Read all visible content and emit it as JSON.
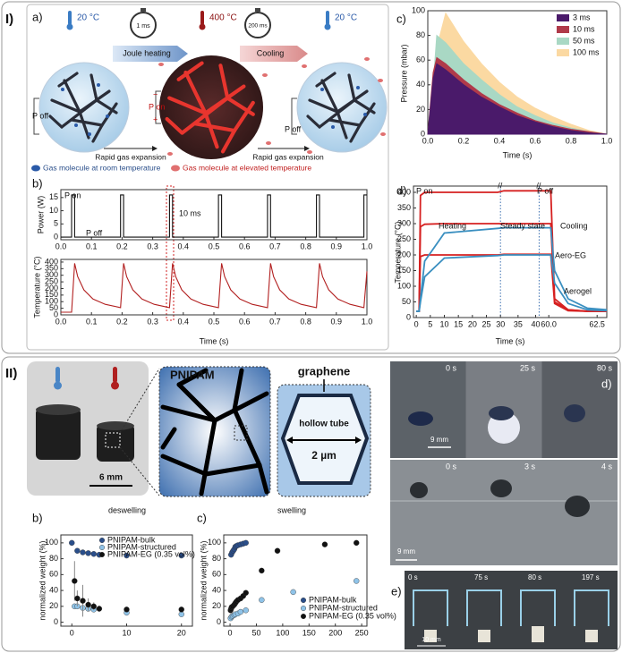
{
  "figure": {
    "section_labels": [
      "I)",
      "II)"
    ],
    "panel_1a": {
      "label": "a)",
      "temperatures": [
        "20 °C",
        "400 °C",
        "20 °C"
      ],
      "timers": [
        "1 ms",
        "200 ms"
      ],
      "steps": [
        "Joule heating",
        "Cooling"
      ],
      "switches": [
        "P off",
        "P on",
        "P off"
      ],
      "polarity": [
        "−",
        "+"
      ],
      "expansion": [
        "Rapid gas expansion",
        "Rapid gas expansion"
      ],
      "legend": [
        "Gas molecule at room temperature",
        "Gas molecule at elevated temperature"
      ]
    },
    "panel_1b": {
      "label": "b)"
    },
    "panel_1c": {
      "label": "c)"
    },
    "panel_1d": {
      "label": "d)"
    },
    "panel_2a": {
      "label": "a)",
      "scale": "6 mm",
      "network": "PNIPAM",
      "sheet": "graphene",
      "tube": "hollow tube",
      "size": "2 µm"
    },
    "panel_2b": {
      "label": "b)"
    },
    "panel_2c": {
      "label": "c)"
    },
    "panel_2d": {
      "label": "d)",
      "times_top": [
        "0 s",
        "25 s",
        "80 s"
      ],
      "times_bottom": [
        "0 s",
        "3 s",
        "4 s"
      ],
      "scales": [
        "9 mm",
        "9 mm"
      ]
    },
    "panel_2e": {
      "label": "e)",
      "times": [
        "0 s",
        "75 s",
        "80 s",
        "197 s"
      ],
      "scale": "10 mm"
    }
  },
  "chart_data": [
    {
      "type": "line",
      "ylabel": "Power (W)",
      "color": "#111",
      "x": [
        0,
        0.035,
        0.035,
        0.045,
        0.045,
        0.195,
        0.195,
        0.205,
        0.205,
        0.355,
        0.355,
        0.365,
        0.365,
        0.515,
        0.515,
        0.525,
        0.525,
        0.675,
        0.675,
        0.685,
        0.685,
        0.835,
        0.835,
        0.845,
        0.845,
        0.99,
        0.99,
        1.0
      ],
      "values": [
        0,
        0,
        16,
        16,
        0,
        0,
        16,
        16,
        0,
        0,
        16,
        16,
        0,
        0,
        16,
        16,
        0,
        0,
        16,
        16,
        0,
        0,
        16,
        16,
        0,
        0,
        16,
        16
      ],
      "xlim": [
        0,
        1
      ],
      "xticks": [
        {
          "value": 0,
          "label": "0.0"
        },
        0.1,
        0.2,
        0.3,
        0.4,
        0.5,
        0.6,
        0.7,
        0.8,
        0.9,
        {
          "value": 1,
          "label": "1.0"
        }
      ],
      "ylim": [
        -1,
        18
      ],
      "yticks": [
        0,
        5,
        10,
        15
      ],
      "annotations": [
        "P on",
        "P off",
        "10 ms"
      ]
    },
    {
      "type": "line",
      "ylabel": "Temperature (°C)",
      "xlabel": "Time (s)",
      "color": "#b22020",
      "x": [
        0,
        0.035,
        0.045,
        0.055,
        0.075,
        0.105,
        0.145,
        0.195,
        0.205,
        0.215,
        0.235,
        0.265,
        0.305,
        0.355,
        0.365,
        0.375,
        0.395,
        0.425,
        0.465,
        0.515,
        0.525,
        0.535,
        0.555,
        0.585,
        0.625,
        0.675,
        0.685,
        0.695,
        0.715,
        0.745,
        0.785,
        0.835,
        0.845,
        0.855,
        0.875,
        0.905,
        0.945,
        0.99,
        1.0
      ],
      "values": [
        20,
        20,
        390,
        290,
        190,
        120,
        80,
        55,
        390,
        290,
        190,
        120,
        80,
        55,
        390,
        290,
        190,
        120,
        80,
        55,
        390,
        290,
        190,
        120,
        80,
        55,
        390,
        290,
        190,
        120,
        80,
        55,
        390,
        290,
        190,
        120,
        80,
        55,
        330
      ],
      "xlim": [
        0,
        1
      ],
      "xticks": [
        {
          "value": 0,
          "label": "0.0"
        },
        0.1,
        0.2,
        0.3,
        0.4,
        0.5,
        0.6,
        0.7,
        0.8,
        0.9,
        {
          "value": 1,
          "label": "1.0"
        }
      ],
      "ylim": [
        0,
        420
      ],
      "yticks": [
        0,
        50,
        100,
        150,
        200,
        250,
        300,
        350,
        400
      ]
    },
    {
      "type": "area",
      "ylabel": "Pressure (mbar)",
      "xlabel": "Time (s)",
      "legend": "upper right",
      "x": [
        0,
        0.03,
        0.05,
        0.1,
        0.2,
        0.3,
        0.4,
        0.5,
        0.6,
        0.7,
        0.8,
        0.9,
        1.0
      ],
      "series": [
        {
          "name": "3 ms",
          "color": "#4a1a6a",
          "values": [
            0,
            45,
            57,
            52,
            40,
            30,
            22,
            15,
            10,
            6,
            3,
            1,
            0
          ]
        },
        {
          "name": "10 ms",
          "color": "#b03a4a",
          "values": [
            0,
            50,
            62,
            57,
            44,
            33,
            24,
            17,
            11,
            7,
            4,
            2,
            0
          ]
        },
        {
          "name": "50 ms",
          "color": "#a9d8c4",
          "values": [
            0,
            40,
            80,
            74,
            57,
            44,
            32,
            22,
            15,
            9,
            5,
            2,
            0
          ]
        },
        {
          "name": "100 ms",
          "color": "#fbd9a2",
          "values": [
            0,
            20,
            70,
            98,
            75,
            57,
            42,
            30,
            21,
            14,
            8,
            3,
            0
          ]
        }
      ],
      "xlim": [
        0,
        1
      ],
      "xticks": [
        {
          "value": 0,
          "label": "0.0"
        },
        0.2,
        0.4,
        0.6,
        0.8,
        {
          "value": 1,
          "label": "1.0"
        }
      ],
      "ylim": [
        0,
        100
      ],
      "yticks": [
        0,
        20,
        40,
        60,
        80,
        100
      ]
    },
    {
      "type": "line",
      "ylabel": "Temperature (°C)",
      "xlabel": "Time (s)",
      "x": [
        0,
        1,
        1.5,
        3,
        10,
        29,
        31,
        40,
        59.5,
        60.1,
        60.3,
        61,
        62,
        63
      ],
      "series": [
        {
          "name": "Aero-EG",
          "color": "#d62020",
          "lines": [
            [
              20,
              20,
              390,
              400,
              400,
              400,
              405,
              405,
              405,
              405,
              60,
              25,
              20,
              20
            ],
            [
              20,
              20,
              290,
              298,
              300,
              300,
              300,
              300,
              300,
              300,
              50,
              25,
              20,
              20
            ],
            [
              20,
              20,
              195,
              200,
              200,
              200,
              202,
              202,
              202,
              202,
              45,
              22,
              20,
              20
            ]
          ]
        },
        {
          "name": "Aerogel",
          "color": "#3a8fc0",
          "lines": [
            [
              20,
              20,
              60,
              180,
              270,
              285,
              287,
              287,
              287,
              287,
              150,
              60,
              30,
              25
            ],
            [
              20,
              20,
              50,
              130,
              190,
              198,
              200,
              200,
              200,
              200,
              110,
              45,
              25,
              22
            ]
          ]
        }
      ],
      "xlim": [
        [
          -1,
          30
        ],
        [
          30,
          41
        ],
        [
          59.5,
          63
        ]
      ],
      "xticks": [
        0,
        5,
        10,
        15,
        20,
        25,
        30,
        35,
        40,
        {
          "value": 60,
          "label": "60.0"
        },
        {
          "value": 62.5,
          "label": "62.5"
        }
      ],
      "ylim": [
        0,
        420
      ],
      "yticks": [
        0,
        50,
        100,
        150,
        200,
        250,
        300,
        350,
        400
      ],
      "annotations": [
        "P on",
        "Heating",
        "Steady state",
        "P off",
        "Cooling"
      ]
    },
    {
      "type": "scatter",
      "title": "deswelling",
      "ylabel": "normalized weight (%)",
      "legend": "upper right",
      "series": [
        {
          "name": "PNIPAM-bulk",
          "color": "#2a4e8a",
          "x": [
            0,
            1,
            2,
            3,
            4,
            5,
            10,
            20
          ],
          "values": [
            100,
            90,
            88,
            87,
            86,
            85,
            84,
            84
          ]
        },
        {
          "name": "PNIPAM-structured",
          "color": "#8fc3e8",
          "x": [
            0.5,
            1,
            2,
            3,
            4,
            10,
            20
          ],
          "values": [
            20,
            20,
            18,
            17,
            16,
            12,
            10
          ]
        },
        {
          "name": "PNIPAM-EG (0.35 vol%)",
          "color": "#111",
          "x": [
            0.5,
            1,
            2,
            3,
            4,
            5,
            10,
            20
          ],
          "values": [
            52,
            30,
            27,
            22,
            20,
            17,
            16,
            16
          ],
          "errors": [
            25,
            10,
            20,
            8,
            5,
            4,
            2,
            2
          ]
        }
      ],
      "xlim": [
        -2,
        22
      ],
      "xticks": [
        0,
        10,
        20
      ],
      "ylim": [
        -5,
        110
      ],
      "yticks": [
        0,
        20,
        40,
        60,
        80,
        100
      ]
    },
    {
      "type": "scatter",
      "title": "swelling",
      "ylabel": "normalized weight (%)",
      "legend": "lower right",
      "series": [
        {
          "name": "PNIPAM-bulk",
          "color": "#2a4e8a",
          "x": [
            2,
            4,
            6,
            8,
            10,
            12,
            15,
            20,
            25,
            30
          ],
          "values": [
            85,
            88,
            90,
            92,
            95,
            96,
            97,
            98,
            99,
            100
          ]
        },
        {
          "name": "PNIPAM-structured",
          "color": "#8fc3e8",
          "x": [
            1,
            3,
            5,
            8,
            10,
            15,
            20,
            30,
            60,
            120,
            240
          ],
          "values": [
            5,
            7,
            8,
            9,
            10,
            11,
            13,
            15,
            28,
            38,
            52
          ]
        },
        {
          "name": "PNIPAM-EG (0.35 vol%)",
          "color": "#111",
          "x": [
            1,
            2,
            3,
            5,
            8,
            10,
            12,
            15,
            20,
            25,
            30,
            60,
            90,
            180,
            240
          ],
          "values": [
            15,
            17,
            19,
            20,
            22,
            24,
            26,
            28,
            30,
            33,
            37,
            65,
            90,
            98,
            100
          ]
        }
      ],
      "xlim": [
        -12,
        260
      ],
      "xticks": [
        0,
        50,
        100,
        150,
        200,
        250
      ],
      "ylim": [
        -5,
        110
      ],
      "yticks": [
        0,
        20,
        40,
        60,
        80,
        100
      ]
    }
  ]
}
